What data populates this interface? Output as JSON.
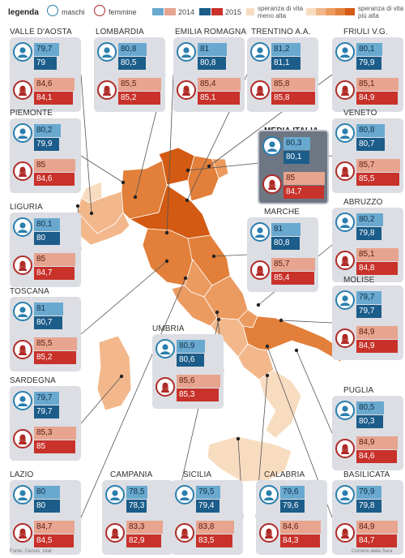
{
  "legend": {
    "title": "legenda",
    "male": "maschi",
    "female": "femmine",
    "year_2014": "2014",
    "year_2015": "2015",
    "low_line1": "speranza di vita",
    "low_line2": "meno alta",
    "high_line1": "speranza di vita",
    "high_line2": "più alta"
  },
  "colors": {
    "male_2014": "#6aa9cf",
    "male_2015": "#1c5d8a",
    "female_2014": "#e7a48f",
    "female_2015": "#c8322a",
    "map_low": "#f8dcc0",
    "map_high": "#d35a12"
  },
  "chart_data": {
    "type": "bar",
    "series": [
      {
        "name": "maschi 2014"
      },
      {
        "name": "maschi 2015"
      },
      {
        "name": "femmine 2014"
      },
      {
        "name": "femmine 2015"
      }
    ],
    "regions": [
      {
        "name": "VALLE D'AOSTA",
        "m2014": "79,7",
        "m2015": "79",
        "f2014": "84,6",
        "f2015": "84,1"
      },
      {
        "name": "LOMBARDIA",
        "m2014": "80,8",
        "m2015": "80,5",
        "f2014": "85,5",
        "f2015": "85,2"
      },
      {
        "name": "EMILIA ROMAGNA",
        "m2014": "81",
        "m2015": "80,8",
        "f2014": "85,4",
        "f2015": "85,1"
      },
      {
        "name": "TRENTINO A.A.",
        "m2014": "81,2",
        "m2015": "81,1",
        "f2014": "85,8",
        "f2015": "85,8"
      },
      {
        "name": "FRIULI V.G.",
        "m2014": "80,1",
        "m2015": "79,9",
        "f2014": "85,1",
        "f2015": "84,9"
      },
      {
        "name": "PIEMONTE",
        "m2014": "80,2",
        "m2015": "79,9",
        "f2014": "85",
        "f2015": "84,6"
      },
      {
        "name": "MEDIA ITALIA",
        "m2014": "80,3",
        "m2015": "80,1",
        "f2014": "85",
        "f2015": "84,7"
      },
      {
        "name": "VENETO",
        "m2014": "80,8",
        "m2015": "80,7",
        "f2014": "85,7",
        "f2015": "85,5"
      },
      {
        "name": "LIGURIA",
        "m2014": "80,1",
        "m2015": "80",
        "f2014": "85",
        "f2015": "84,7"
      },
      {
        "name": "MARCHE",
        "m2014": "81",
        "m2015": "80,8",
        "f2014": "85,7",
        "f2015": "85,4"
      },
      {
        "name": "ABRUZZO",
        "m2014": "80,2",
        "m2015": "79,8",
        "f2014": "85,1",
        "f2015": "84,8"
      },
      {
        "name": "TOSCANA",
        "m2014": "81",
        "m2015": "80,7",
        "f2014": "85,5",
        "f2015": "85,2"
      },
      {
        "name": "UMBRIA",
        "m2014": "80,9",
        "m2015": "80,6",
        "f2014": "85,6",
        "f2015": "85,3"
      },
      {
        "name": "MOLISE",
        "m2014": "79,7",
        "m2015": "79,7",
        "f2014": "84,9",
        "f2015": "84,9"
      },
      {
        "name": "SARDEGNA",
        "m2014": "79,7",
        "m2015": "79,7",
        "f2014": "85,3",
        "f2015": "85"
      },
      {
        "name": "PUGLIA",
        "m2014": "80,5",
        "m2015": "80,3",
        "f2014": "84,9",
        "f2015": "84,6"
      },
      {
        "name": "LAZIO",
        "m2014": "80",
        "m2015": "80",
        "f2014": "84,7",
        "f2015": "84,5"
      },
      {
        "name": "CAMPANIA",
        "m2014": "78,5",
        "m2015": "78,3",
        "f2014": "83,3",
        "f2015": "82,9"
      },
      {
        "name": "SICILIA",
        "m2014": "79,5",
        "m2015": "79,4",
        "f2014": "83,8",
        "f2015": "83,5"
      },
      {
        "name": "CALABRIA",
        "m2014": "79,6",
        "m2015": "79,6",
        "f2014": "84,6",
        "f2015": "84,3"
      },
      {
        "name": "BASILICATA",
        "m2014": "79,9",
        "m2015": "79,8",
        "f2014": "84,9",
        "f2015": "84,7"
      }
    ]
  },
  "footer": {
    "source": "Fonte: Censis, Istat",
    "credit": "Corriere della Sera"
  }
}
